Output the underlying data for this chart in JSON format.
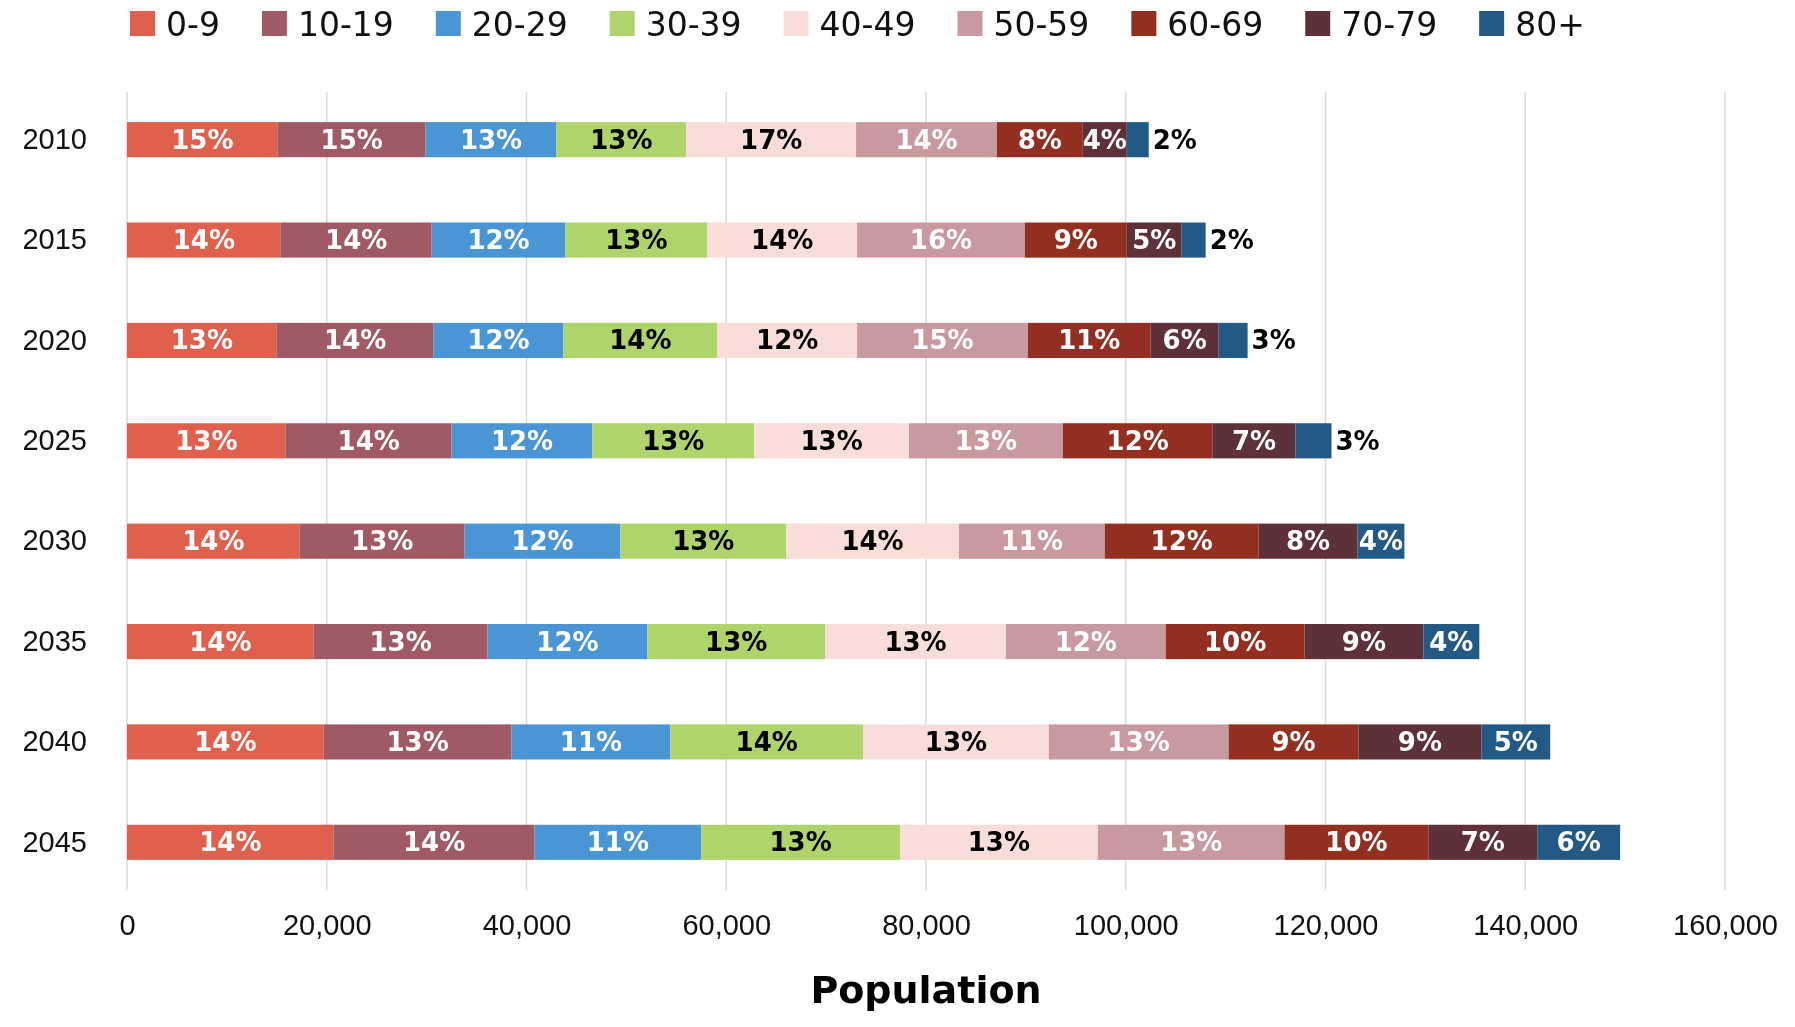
{
  "chart_data": {
    "type": "bar",
    "orientation": "horizontal",
    "stacked": true,
    "xlabel": "Population",
    "legend": "top",
    "grid": "x",
    "categories": [
      "2010",
      "2015",
      "2020",
      "2025",
      "2030",
      "2035",
      "2040",
      "2045"
    ],
    "xlim": [
      0,
      160000
    ],
    "xticks": [
      0,
      {
        "value": 20000,
        "label": "20,000"
      },
      {
        "value": 40000,
        "label": "40,000"
      },
      {
        "value": 60000,
        "label": "60,000"
      },
      {
        "value": 80000,
        "label": "80,000"
      },
      {
        "value": 100000,
        "label": "100,000"
      },
      {
        "value": 120000,
        "label": "120,000"
      },
      {
        "value": 140000,
        "label": "140,000"
      },
      {
        "value": 160000,
        "label": "160,000"
      }
    ],
    "series": [
      {
        "name": "0-9",
        "color": "#e0604e",
        "values": [
          15100,
          15400,
          15000,
          15900,
          17300,
          18700,
          19700,
          20700
        ]
      },
      {
        "name": "10-19",
        "color": "#a05a64",
        "values": [
          14800,
          15100,
          15700,
          16600,
          16500,
          17400,
          18800,
          20100
        ]
      },
      {
        "name": "20-29",
        "color": "#4a95d3",
        "values": [
          13100,
          13400,
          13000,
          14100,
          15600,
          16000,
          15900,
          16700
        ]
      },
      {
        "name": "30-39",
        "color": "#b0d46c",
        "values": [
          13000,
          14200,
          15400,
          16200,
          16600,
          17800,
          19300,
          19900
        ]
      },
      {
        "name": "40-49",
        "color": "#f8ddd8",
        "values": [
          17000,
          15000,
          14000,
          15500,
          17300,
          18100,
          18600,
          19800
        ]
      },
      {
        "name": "50-59",
        "color": "#c89aa0",
        "values": [
          14100,
          16800,
          17100,
          15400,
          14600,
          16000,
          18000,
          18700
        ]
      },
      {
        "name": "60-69",
        "color": "#922f20",
        "values": [
          8600,
          10200,
          12300,
          15000,
          15400,
          13900,
          13000,
          14400
        ]
      },
      {
        "name": "70-79",
        "color": "#5e3038",
        "values": [
          4400,
          5500,
          6800,
          8300,
          9900,
          11900,
          12300,
          10900
        ]
      },
      {
        "name": "80+",
        "color": "#225a85",
        "values": [
          2200,
          2400,
          2900,
          3600,
          4700,
          5600,
          6900,
          8300
        ]
      }
    ],
    "annotations": [
      {
        "text": "15%",
        "x": 15100,
        "y": "2010"
      },
      {
        "text": "15%",
        "x": 29900,
        "y": "2010"
      },
      {
        "text": "13%",
        "x": 43000,
        "y": "2010"
      },
      {
        "text": "13%",
        "x": 56000,
        "y": "2010"
      },
      {
        "text": "17%",
        "x": 73000,
        "y": "2010"
      },
      {
        "text": "14%",
        "x": 87100,
        "y": "2010"
      },
      {
        "text": "8%",
        "x": 95700,
        "y": "2010"
      },
      {
        "text": "4%",
        "x": 100100,
        "y": "2010"
      },
      {
        "text": "2%",
        "x": 102300,
        "y": "2010"
      },
      {
        "text": "14%",
        "x": 15400,
        "y": "2015"
      },
      {
        "text": "14%",
        "x": 30500,
        "y": "2015"
      },
      {
        "text": "12%",
        "x": 43900,
        "y": "2015"
      },
      {
        "text": "13%",
        "x": 58100,
        "y": "2015"
      },
      {
        "text": "14%",
        "x": 73100,
        "y": "2015"
      },
      {
        "text": "16%",
        "x": 89900,
        "y": "2015"
      },
      {
        "text": "9%",
        "x": 100100,
        "y": "2015"
      },
      {
        "text": "5%",
        "x": 105600,
        "y": "2015"
      },
      {
        "text": "2%",
        "x": 108000,
        "y": "2015"
      },
      {
        "text": "13%",
        "x": 15000,
        "y": "2020"
      },
      {
        "text": "14%",
        "x": 30700,
        "y": "2020"
      },
      {
        "text": "12%",
        "x": 43700,
        "y": "2020"
      },
      {
        "text": "14%",
        "x": 59100,
        "y": "2020"
      },
      {
        "text": "12%",
        "x": 73100,
        "y": "2020"
      },
      {
        "text": "15%",
        "x": 90200,
        "y": "2020"
      },
      {
        "text": "11%",
        "x": 102500,
        "y": "2020"
      },
      {
        "text": "6%",
        "x": 109300,
        "y": "2020"
      },
      {
        "text": "3%",
        "x": 112200,
        "y": "2020"
      },
      {
        "text": "13%",
        "x": 15900,
        "y": "2025"
      },
      {
        "text": "14%",
        "x": 32500,
        "y": "2025"
      },
      {
        "text": "12%",
        "x": 46600,
        "y": "2025"
      },
      {
        "text": "13%",
        "x": 62800,
        "y": "2025"
      },
      {
        "text": "13%",
        "x": 78300,
        "y": "2025"
      },
      {
        "text": "13%",
        "x": 93700,
        "y": "2025"
      },
      {
        "text": "12%",
        "x": 108700,
        "y": "2025"
      },
      {
        "text": "7%",
        "x": 117000,
        "y": "2025"
      },
      {
        "text": "3%",
        "x": 120600,
        "y": "2025"
      },
      {
        "text": "14%",
        "x": 17300,
        "y": "2030"
      },
      {
        "text": "13%",
        "x": 33800,
        "y": "2030"
      },
      {
        "text": "12%",
        "x": 49400,
        "y": "2030"
      },
      {
        "text": "13%",
        "x": 66000,
        "y": "2030"
      },
      {
        "text": "14%",
        "x": 83300,
        "y": "2030"
      },
      {
        "text": "11%",
        "x": 97900,
        "y": "2030"
      },
      {
        "text": "12%",
        "x": 113300,
        "y": "2030"
      },
      {
        "text": "8%",
        "x": 123200,
        "y": "2030"
      },
      {
        "text": "4%",
        "x": 127900,
        "y": "2030"
      },
      {
        "text": "14%",
        "x": 18700,
        "y": "2035"
      },
      {
        "text": "13%",
        "x": 36100,
        "y": "2035"
      },
      {
        "text": "12%",
        "x": 52100,
        "y": "2035"
      },
      {
        "text": "13%",
        "x": 69900,
        "y": "2035"
      },
      {
        "text": "13%",
        "x": 88000,
        "y": "2035"
      },
      {
        "text": "12%",
        "x": 104000,
        "y": "2035"
      },
      {
        "text": "10%",
        "x": 117900,
        "y": "2035"
      },
      {
        "text": "9%",
        "x": 129800,
        "y": "2035"
      },
      {
        "text": "4%",
        "x": 135400,
        "y": "2035"
      },
      {
        "text": "14%",
        "x": 19700,
        "y": "2040"
      },
      {
        "text": "13%",
        "x": 38500,
        "y": "2040"
      },
      {
        "text": "11%",
        "x": 54400,
        "y": "2040"
      },
      {
        "text": "14%",
        "x": 73700,
        "y": "2040"
      },
      {
        "text": "13%",
        "x": 92300,
        "y": "2040"
      },
      {
        "text": "13%",
        "x": 110300,
        "y": "2040"
      },
      {
        "text": "9%",
        "x": 123300,
        "y": "2040"
      },
      {
        "text": "9%",
        "x": 135600,
        "y": "2040"
      },
      {
        "text": "5%",
        "x": 142500,
        "y": "2040"
      },
      {
        "text": "14%",
        "x": 20700,
        "y": "2045"
      },
      {
        "text": "14%",
        "x": 40800,
        "y": "2045"
      },
      {
        "text": "11%",
        "x": 57500,
        "y": "2045"
      },
      {
        "text": "13%",
        "x": 77400,
        "y": "2045"
      },
      {
        "text": "13%",
        "x": 97200,
        "y": "2045"
      },
      {
        "text": "13%",
        "x": 115900,
        "y": "2045"
      },
      {
        "text": "10%",
        "x": 130300,
        "y": "2045"
      },
      {
        "text": "7%",
        "x": 141200,
        "y": "2045"
      },
      {
        "text": "6%",
        "x": 149500,
        "y": "2045"
      }
    ]
  }
}
